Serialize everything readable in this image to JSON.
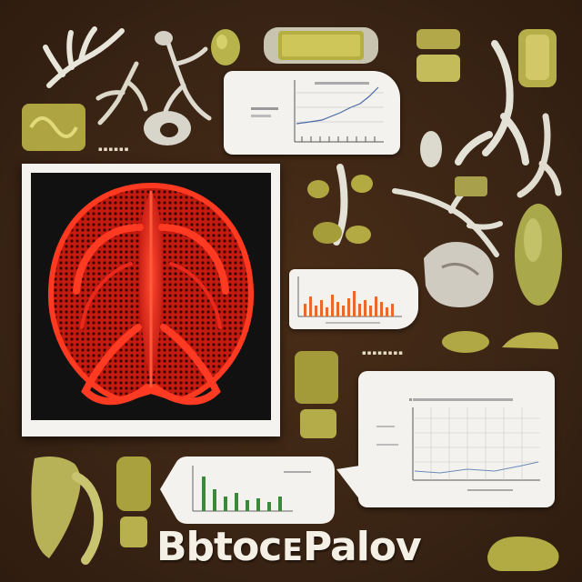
{
  "poster": {
    "title": "BbtocᴇPalov"
  },
  "palette": {
    "background": "#3a2414",
    "olive": "#a9a84a",
    "bone": "#e6e4d6",
    "red": "#e8281a",
    "paper": "#f4f2ee"
  },
  "icons": [
    "skeletal-hand-icon",
    "claw-icon",
    "bone-icon",
    "olive-specimen-icon",
    "anatomy-illustration-icon",
    "line-chart-icon",
    "bar-chart-icon",
    "grid-chart-icon"
  ]
}
